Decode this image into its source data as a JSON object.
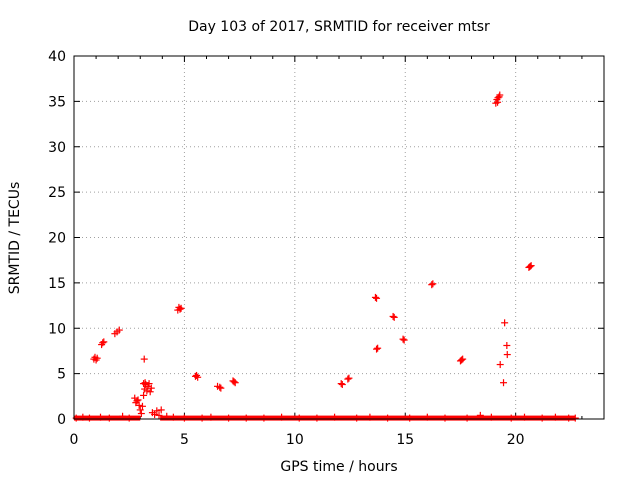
{
  "chart_data": {
    "type": "scatter",
    "title": "Day 103 of 2017, SRMTID for receiver mtsr",
    "xlabel": "GPS time / hours",
    "ylabel": "SRMTID / TECUs",
    "xlim": [
      0,
      24
    ],
    "ylim": [
      0,
      40
    ],
    "x_ticks": [
      0,
      5,
      10,
      15,
      20
    ],
    "y_ticks": [
      0,
      5,
      10,
      15,
      20,
      25,
      30,
      35,
      40
    ],
    "grid": true,
    "marker": "+",
    "color": "#ff0000",
    "series": [
      {
        "name": "SRMTID",
        "points": [
          [
            0.9,
            6.6
          ],
          [
            0.95,
            6.8
          ],
          [
            1.0,
            6.5
          ],
          [
            1.05,
            6.7
          ],
          [
            1.25,
            8.2
          ],
          [
            1.3,
            8.4
          ],
          [
            1.35,
            8.5
          ],
          [
            1.85,
            9.4
          ],
          [
            1.95,
            9.6
          ],
          [
            2.05,
            9.8
          ],
          [
            2.75,
            2.3
          ],
          [
            2.8,
            1.8
          ],
          [
            2.85,
            2.0
          ],
          [
            2.9,
            2.1
          ],
          [
            2.95,
            1.5
          ],
          [
            3.0,
            1.0
          ],
          [
            3.05,
            0.6
          ],
          [
            3.1,
            1.4
          ],
          [
            3.15,
            2.6
          ],
          [
            3.2,
            3.3
          ],
          [
            3.25,
            3.8
          ],
          [
            3.3,
            3.1
          ],
          [
            3.35,
            3.6
          ],
          [
            3.4,
            3.9
          ],
          [
            3.45,
            3.0
          ],
          [
            3.5,
            3.4
          ],
          [
            3.15,
            3.9
          ],
          [
            3.22,
            4.0
          ],
          [
            3.18,
            6.6
          ],
          [
            3.55,
            0.7
          ],
          [
            3.65,
            0.5
          ],
          [
            3.75,
            0.9
          ],
          [
            3.85,
            0.4
          ],
          [
            3.95,
            1.0
          ],
          [
            4.7,
            12.0
          ],
          [
            4.75,
            12.3
          ],
          [
            4.8,
            12.1
          ],
          [
            4.85,
            12.2
          ],
          [
            5.5,
            4.7
          ],
          [
            5.55,
            4.8
          ],
          [
            5.6,
            4.6
          ],
          [
            6.5,
            3.6
          ],
          [
            6.6,
            3.5
          ],
          [
            6.65,
            3.4
          ],
          [
            7.2,
            4.2
          ],
          [
            7.25,
            4.1
          ],
          [
            7.3,
            4.0
          ],
          [
            12.1,
            3.9
          ],
          [
            12.15,
            3.8
          ],
          [
            12.4,
            4.4
          ],
          [
            12.45,
            4.5
          ],
          [
            13.65,
            13.4
          ],
          [
            13.7,
            13.3
          ],
          [
            13.7,
            7.7
          ],
          [
            13.75,
            7.8
          ],
          [
            14.45,
            11.3
          ],
          [
            14.5,
            11.2
          ],
          [
            14.9,
            8.8
          ],
          [
            14.95,
            8.7
          ],
          [
            16.2,
            14.8
          ],
          [
            16.25,
            14.9
          ],
          [
            17.5,
            6.4
          ],
          [
            17.55,
            6.5
          ],
          [
            17.6,
            6.6
          ],
          [
            19.1,
            34.8
          ],
          [
            19.15,
            35.2
          ],
          [
            19.2,
            35.4
          ],
          [
            19.25,
            35.5
          ],
          [
            19.18,
            34.9
          ],
          [
            19.28,
            35.7
          ],
          [
            19.3,
            6.0
          ],
          [
            19.45,
            4.0
          ],
          [
            19.5,
            10.6
          ],
          [
            19.6,
            8.1
          ],
          [
            19.62,
            7.1
          ],
          [
            20.6,
            16.7
          ],
          [
            20.65,
            16.8
          ],
          [
            20.7,
            16.9
          ],
          [
            0.1,
            0.1
          ],
          [
            0.4,
            0.2
          ],
          [
            0.7,
            0.1
          ],
          [
            1.2,
            0.2
          ],
          [
            1.6,
            0.1
          ],
          [
            2.2,
            0.3
          ],
          [
            2.5,
            0.1
          ],
          [
            4.2,
            0.3
          ],
          [
            4.5,
            0.2
          ],
          [
            5.0,
            0.1
          ],
          [
            5.8,
            0.1
          ],
          [
            6.2,
            0.2
          ],
          [
            7.0,
            0.1
          ],
          [
            7.8,
            0.1
          ],
          [
            8.6,
            0.1
          ],
          [
            9.4,
            0.2
          ],
          [
            10.2,
            0.1
          ],
          [
            11.0,
            0.1
          ],
          [
            11.8,
            0.2
          ],
          [
            12.8,
            0.1
          ],
          [
            13.4,
            0.2
          ],
          [
            14.2,
            0.1
          ],
          [
            15.2,
            0.1
          ],
          [
            16.0,
            0.2
          ],
          [
            16.8,
            0.1
          ],
          [
            17.8,
            0.1
          ],
          [
            18.4,
            0.4
          ],
          [
            18.9,
            0.2
          ],
          [
            19.8,
            0.1
          ],
          [
            20.4,
            0.2
          ],
          [
            21.2,
            0.1
          ],
          [
            21.8,
            0.2
          ],
          [
            22.4,
            0.1
          ],
          [
            22.7,
            0.1
          ]
        ],
        "baseline_band": {
          "y": 0.1,
          "x_ranges": [
            [
              0,
              3.0
            ],
            [
              3.9,
              22.7
            ]
          ]
        }
      }
    ]
  }
}
